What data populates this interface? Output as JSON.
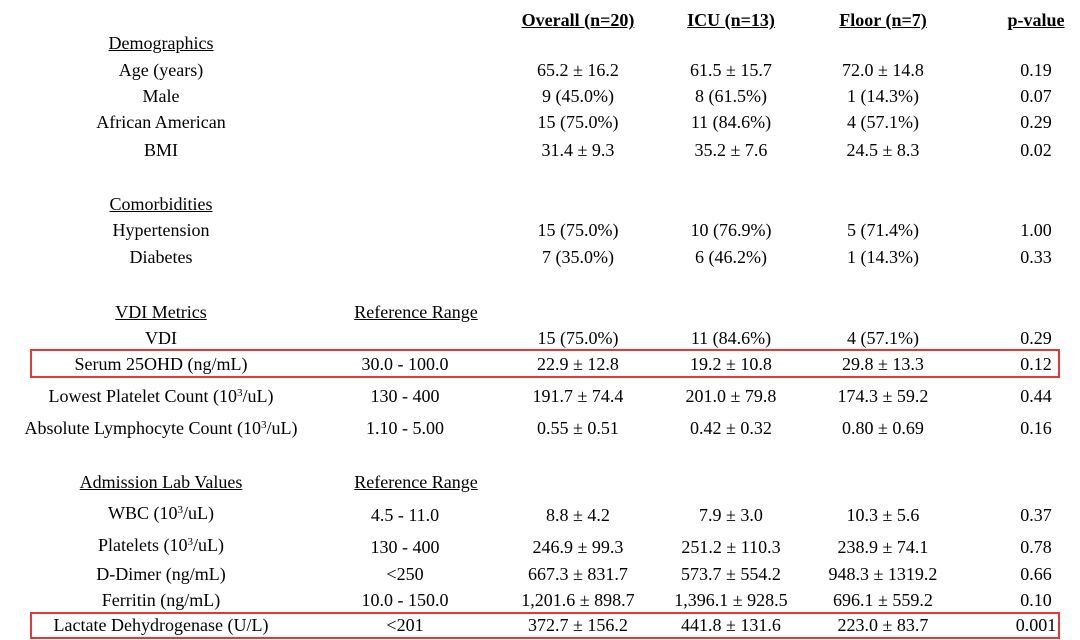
{
  "columns": {
    "overall": "Overall (n=20)",
    "icu": "ICU (n=13)",
    "floor": "Floor (n=7)",
    "pvalue": "p-value"
  },
  "sections": [
    {
      "title": "Demographics",
      "rows": [
        {
          "label": "Age (years)",
          "overall": "65.2 ± 16.2",
          "icu": "61.5 ± 15.7",
          "floor": "72.0 ± 14.8",
          "p": "0.19"
        },
        {
          "label": "Male",
          "overall": "9 (45.0%)",
          "icu": "8 (61.5%)",
          "floor": "1 (14.3%)",
          "p": "0.07"
        },
        {
          "label": "African American",
          "overall": "15 (75.0%)",
          "icu": "11 (84.6%)",
          "floor": "4 (57.1%)",
          "p": "0.29"
        },
        {
          "label": "BMI",
          "overall": "31.4 ± 9.3",
          "icu": "35.2 ± 7.6",
          "floor": "24.5 ± 8.3",
          "p": "0.02"
        }
      ]
    },
    {
      "title": "Comorbidities",
      "rows": [
        {
          "label": "Hypertension",
          "overall": "15 (75.0%)",
          "icu": "10 (76.9%)",
          "floor": "5 (71.4%)",
          "p": "1.00"
        },
        {
          "label": "Diabetes",
          "overall": "7 (35.0%)",
          "icu": "6 (46.2%)",
          "floor": "1 (14.3%)",
          "p": "0.33"
        }
      ]
    },
    {
      "title": "VDI Metrics",
      "ref_header": "Reference Range",
      "rows": [
        {
          "label": "VDI",
          "ref": "",
          "overall": "15 (75.0%)",
          "icu": "11 (84.6%)",
          "floor": "4 (57.1%)",
          "p": "0.29"
        },
        {
          "label": "Serum 25OHD (ng/mL)",
          "ref": "30.0 - 100.0",
          "overall": "22.9 ± 12.8",
          "icu": "19.2 ± 10.8",
          "floor": "29.8 ± 13.3",
          "p": "0.12"
        },
        {
          "label_pre": "Lowest Platelet Count (10",
          "label_sup": "3",
          "label_post": "/uL)",
          "ref": "130 - 400",
          "overall": "191.7 ± 74.4",
          "icu": "201.0 ± 79.8",
          "floor": "174.3 ± 59.2",
          "p": "0.44"
        },
        {
          "label_pre": "Absolute Lymphocyte Count (10",
          "label_sup": "3",
          "label_post": "/uL)",
          "ref": "1.10 - 5.00",
          "overall": "0.55 ± 0.51",
          "icu": "0.42 ± 0.32",
          "floor": "0.80 ± 0.69",
          "p": "0.16"
        }
      ]
    },
    {
      "title": "Admission Lab Values",
      "ref_header": "Reference Range",
      "rows": [
        {
          "label_pre": "WBC (10",
          "label_sup": "3",
          "label_post": "/uL)",
          "ref": "4.5 - 11.0",
          "overall": "8.8 ± 4.2",
          "icu": "7.9 ± 3.0",
          "floor": "10.3 ± 5.6",
          "p": "0.37"
        },
        {
          "label_pre": "Platelets (10",
          "label_sup": "3",
          "label_post": "/uL)",
          "ref": "130 - 400",
          "overall": "246.9 ± 99.3",
          "icu": "251.2 ± 110.3",
          "floor": "238.9 ± 74.1",
          "p": "0.78"
        },
        {
          "label": "D-Dimer (ng/mL)",
          "ref": "<250",
          "overall": "667.3 ± 831.7",
          "icu": "573.7 ± 554.2",
          "floor": "948.3 ± 1319.2",
          "p": "0.66"
        },
        {
          "label": "Ferritin (ng/mL)",
          "ref": "10.0 - 150.0",
          "overall": "1,201.6 ± 898.7",
          "icu": "1,396.1 ± 928.5",
          "floor": "696.1 ± 559.2",
          "p": "0.10"
        },
        {
          "label": "Lactate Dehydrogenase (U/L)",
          "ref": "<201",
          "overall": "372.7 ± 156.2",
          "icu": "441.8 ± 131.6",
          "floor": "223.0 ± 83.7",
          "p": "0.001"
        }
      ]
    }
  ],
  "highlight_color": "#e53935"
}
